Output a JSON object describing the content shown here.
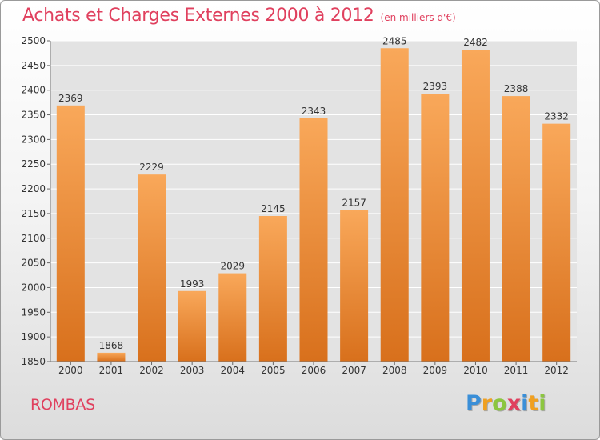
{
  "title": "Achats et Charges Externes 2000 à 2012",
  "unit": "(en milliers d'€)",
  "commune": "ROMBAS",
  "logo": {
    "text": "Proxiti",
    "letters": [
      {
        "ch": "P",
        "color": "#3a8fd8"
      },
      {
        "ch": "r",
        "color": "#f0a020"
      },
      {
        "ch": "o",
        "color": "#8cc63f"
      },
      {
        "ch": "x",
        "color": "#e0405e"
      },
      {
        "ch": "i",
        "color": "#3a8fd8"
      },
      {
        "ch": "t",
        "color": "#f0a020"
      },
      {
        "ch": "i",
        "color": "#8cc63f"
      }
    ]
  },
  "colors": {
    "bar_top": "#f9a85a",
    "bar_bottom": "#d8701c",
    "title": "#e0405e",
    "grid": "#ffffff",
    "plot_bg": "#e3e3e3"
  },
  "chart_data": {
    "type": "bar",
    "categories": [
      "2000",
      "2001",
      "2002",
      "2003",
      "2004",
      "2005",
      "2006",
      "2007",
      "2008",
      "2009",
      "2010",
      "2011",
      "2012"
    ],
    "values": [
      2369,
      1868,
      2229,
      1993,
      2029,
      2145,
      2343,
      2157,
      2485,
      2393,
      2482,
      2388,
      2332
    ],
    "ylim": [
      1850,
      2500
    ],
    "yticks": [
      1850,
      1900,
      1950,
      2000,
      2050,
      2100,
      2150,
      2200,
      2250,
      2300,
      2350,
      2400,
      2450,
      2500
    ],
    "grid": true,
    "data_labels": true
  }
}
